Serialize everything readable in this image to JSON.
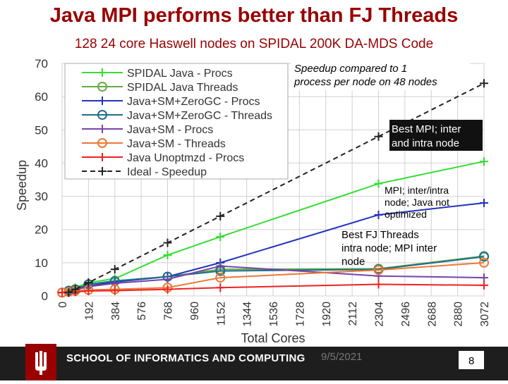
{
  "slide": {
    "title": "Java MPI performs better than FJ Threads",
    "subtitle": "128 24 core Haswell nodes on SPIDAL 200K DA-MDS Code",
    "date": "9/5/2021",
    "page_number": "8",
    "school": "SCHOOL OF INFORMATICS AND COMPUTING"
  },
  "chart_data": {
    "type": "line",
    "xlabel": "Total Cores",
    "ylabel": "Speedup",
    "xlim": [
      0,
      3072
    ],
    "ylim": [
      0,
      70
    ],
    "yticks": [
      0,
      10,
      20,
      30,
      40,
      50,
      60,
      70
    ],
    "xticks": [
      0,
      192,
      384,
      576,
      768,
      960,
      1152,
      1344,
      1536,
      1728,
      1920,
      2112,
      2304,
      2496,
      2688,
      2880,
      3072
    ],
    "grid": true,
    "legend_position": "top-left",
    "series": [
      {
        "name": "SPIDAL Java - Procs",
        "color": "#33dd33",
        "marker": "plus",
        "dashed": false,
        "x": [
          0,
          48,
          96,
          192,
          384,
          768,
          1152,
          2304,
          3072
        ],
        "y": [
          1,
          1.8,
          2.5,
          4,
          5.2,
          12.3,
          17.8,
          33.8,
          40.5
        ]
      },
      {
        "name": "SPIDAL Java Threads",
        "color": "#66aa44",
        "marker": "circle",
        "dashed": false,
        "x": [
          0,
          48,
          96,
          192,
          384,
          768,
          1152,
          2304,
          3072
        ],
        "y": [
          1,
          1.5,
          2,
          3.5,
          4.5,
          5.8,
          8,
          8.2,
          12
        ]
      },
      {
        "name": "Java+SM+ZeroGC - Procs",
        "color": "#2233bb",
        "marker": "plus",
        "dashed": false,
        "x": [
          0,
          48,
          96,
          192,
          384,
          768,
          1152,
          2304,
          3072
        ],
        "y": [
          1,
          1.5,
          2,
          3,
          4.2,
          5.8,
          10,
          24.4,
          28
        ]
      },
      {
        "name": "Java+SM+ZeroGC - Threads",
        "color": "#1f6f8b",
        "marker": "circle",
        "dashed": false,
        "x": [
          0,
          48,
          96,
          192,
          384,
          768,
          1152,
          2304,
          3072
        ],
        "y": [
          1,
          1.6,
          2,
          3.5,
          4.5,
          5.8,
          7.5,
          8,
          11.8
        ]
      },
      {
        "name": "Java+SM - Procs",
        "color": "#7744aa",
        "marker": "plus",
        "dashed": false,
        "x": [
          0,
          48,
          96,
          192,
          384,
          768,
          1152,
          2304,
          3072
        ],
        "y": [
          1,
          1.3,
          1.8,
          2.8,
          3.8,
          5,
          9,
          6,
          5.5
        ]
      },
      {
        "name": "Java+SM - Threads",
        "color": "#ee7733",
        "marker": "circle",
        "dashed": false,
        "x": [
          0,
          48,
          96,
          192,
          384,
          768,
          1152,
          2304,
          3072
        ],
        "y": [
          1,
          1.2,
          1.5,
          1.8,
          2,
          2.5,
          5.5,
          7.8,
          10
        ]
      },
      {
        "name": "Java Unoptmzd - Procs",
        "color": "#ee2222",
        "marker": "plus",
        "dashed": false,
        "x": [
          0,
          48,
          96,
          192,
          384,
          768,
          1152,
          2304,
          3072
        ],
        "y": [
          1,
          1,
          1.2,
          1.5,
          1.6,
          2,
          2.5,
          3.5,
          3.2
        ]
      },
      {
        "name": "Ideal - Speedup",
        "color": "#222222",
        "marker": "plus",
        "dashed": true,
        "x": [
          48,
          96,
          192,
          384,
          768,
          1152,
          2304,
          3072
        ],
        "y": [
          1,
          2,
          4,
          8,
          16,
          24,
          48,
          64
        ]
      }
    ],
    "annotations": [
      {
        "id": "note-speedup",
        "text": "Speedup compared to 1 process per node on 48 nodes"
      },
      {
        "id": "note-best-mpi",
        "text": "Best MPI; inter and intra node"
      },
      {
        "id": "note-mpi-interintra",
        "text": "MPI; inter/intra node; Java not optimized"
      },
      {
        "id": "note-best-fj",
        "text": "Best FJ Threads intra node; MPI inter node"
      }
    ]
  }
}
